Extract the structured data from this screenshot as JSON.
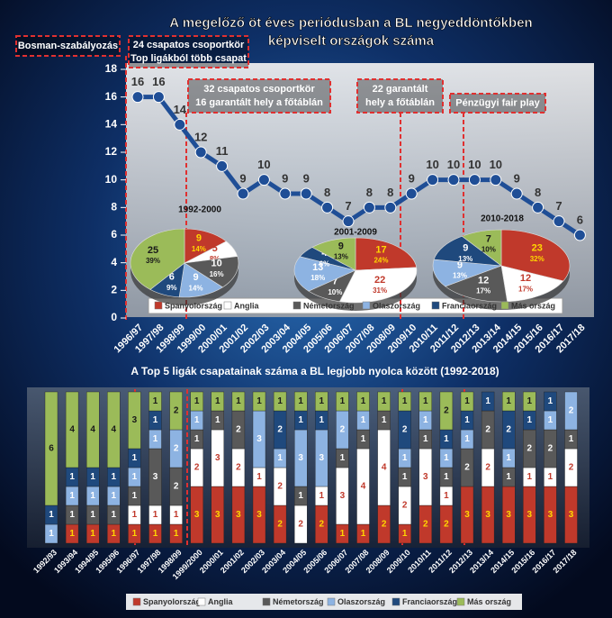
{
  "chart_data": [
    {
      "type": "line",
      "title": [
        "A megelőző öt éves periódusban a BL negyeddöntőkben",
        "képviselt országok száma"
      ],
      "categories": [
        "1996/97",
        "1997/98",
        "1998/99",
        "1999/00",
        "2000/01",
        "2001/02",
        "2002/03",
        "2003/04",
        "2004/05",
        "2005/06",
        "2006/07",
        "2007/08",
        "2008/09",
        "2009/10",
        "2010/11",
        "2011/12",
        "2012/13",
        "2013/14",
        "2014/15",
        "2015/16",
        "2016/17",
        "2017/18"
      ],
      "values": [
        16,
        16,
        14,
        12,
        11,
        9,
        10,
        9,
        9,
        8,
        7,
        8,
        8,
        9,
        10,
        10,
        10,
        10,
        9,
        8,
        7,
        6
      ],
      "color": "#1f4e96",
      "ylim": [
        0,
        18
      ],
      "yticks": [
        0,
        2,
        4,
        6,
        8,
        10,
        12,
        14,
        16,
        18
      ],
      "annotations": [
        {
          "lines": [
            "Bosman-szabályozás"
          ]
        },
        {
          "lines": [
            "24 csapatos csoportkör",
            "Top ligákból több csapat"
          ]
        },
        {
          "lines": [
            "32 csapatos csoportkör",
            "16 garantált hely a főtáblán"
          ]
        },
        {
          "lines": [
            "22 garantált",
            "hely a főtáblán"
          ]
        },
        {
          "lines": [
            "Pénzügyi fair play"
          ]
        }
      ],
      "legend": [
        {
          "name": "Spanyolország",
          "color": "#c0392b"
        },
        {
          "name": "Anglia",
          "color": "#ffffff"
        },
        {
          "name": "Németország",
          "color": "#595959"
        },
        {
          "name": "Olaszország",
          "color": "#8db3e2"
        },
        {
          "name": "Franciaország",
          "color": "#1f497d"
        },
        {
          "name": "Más ország",
          "color": "#9bbb59"
        }
      ],
      "pies": [
        {
          "type": "pie",
          "title": "1992-2000",
          "values": [
            9,
            5,
            10,
            9,
            6,
            25
          ],
          "percent_labels": [
            "14%",
            "8%",
            "16%",
            "14%",
            "9%",
            "39%"
          ]
        },
        {
          "type": "pie",
          "title": "2001-2009",
          "values": [
            17,
            22,
            7,
            13,
            4,
            9
          ],
          "percent_labels": [
            "24%",
            "31%",
            "10%",
            "18%",
            "6%",
            "13%"
          ]
        },
        {
          "type": "pie",
          "title": "2010-2018",
          "values": [
            23,
            12,
            12,
            9,
            9,
            7
          ],
          "percent_labels": [
            "32%",
            "17%",
            "17%",
            "13%",
            "13%",
            "10%"
          ]
        }
      ]
    },
    {
      "type": "bar",
      "stacked": true,
      "title": "A Top 5 ligák csapatainak száma a BL legjobb nyolca között (1992-2018)",
      "categories": [
        "1992/93",
        "1993/94",
        "1994/95",
        "1995/96",
        "1996/97",
        "1997/98",
        "1998/99",
        "1999/2000",
        "2000/01",
        "2001/02",
        "2002/03",
        "2003/04",
        "2004/05",
        "2005/06",
        "2006/07",
        "2007/08",
        "2008/09",
        "2009/10",
        "2010/11",
        "2011/12",
        "2012/13",
        "2013/14",
        "2014/15",
        "2015/16",
        "2016/17",
        "2017/18"
      ],
      "ylim": [
        0,
        8
      ],
      "series": [
        {
          "name": "Spanyolország",
          "color": "#c0392b",
          "values": [
            0,
            1,
            1,
            1,
            1,
            1,
            1,
            3,
            3,
            3,
            3,
            2,
            0,
            2,
            1,
            1,
            2,
            1,
            2,
            2,
            3,
            3,
            3,
            3,
            3,
            3
          ]
        },
        {
          "name": "Anglia",
          "color": "#ffffff",
          "values": [
            0,
            0,
            0,
            0,
            1,
            1,
            1,
            2,
            3,
            2,
            1,
            2,
            2,
            1,
            3,
            4,
            4,
            2,
            3,
            1,
            0,
            2,
            0,
            1,
            1,
            2
          ]
        },
        {
          "name": "Németország",
          "color": "#595959",
          "values": [
            0,
            1,
            1,
            1,
            1,
            3,
            2,
            1,
            1,
            2,
            0,
            0,
            1,
            0,
            1,
            1,
            1,
            1,
            1,
            1,
            2,
            2,
            1,
            2,
            2,
            1
          ]
        },
        {
          "name": "Olaszország",
          "color": "#8db3e2",
          "values": [
            1,
            1,
            1,
            1,
            1,
            1,
            2,
            1,
            0,
            0,
            3,
            1,
            3,
            3,
            2,
            1,
            0,
            1,
            1,
            1,
            1,
            0,
            1,
            0,
            1,
            2
          ]
        },
        {
          "name": "Franciaország",
          "color": "#1f497d",
          "values": [
            1,
            1,
            1,
            1,
            1,
            1,
            0,
            0,
            0,
            0,
            0,
            2,
            1,
            1,
            0,
            0,
            0,
            2,
            0,
            1,
            1,
            1,
            2,
            1,
            1,
            0
          ]
        },
        {
          "name": "Más ország",
          "color": "#9bbb59",
          "values": [
            6,
            4,
            4,
            4,
            3,
            1,
            2,
            1,
            1,
            1,
            1,
            1,
            1,
            1,
            1,
            1,
            1,
            1,
            1,
            2,
            1,
            0,
            1,
            1,
            0,
            0
          ]
        }
      ]
    }
  ]
}
